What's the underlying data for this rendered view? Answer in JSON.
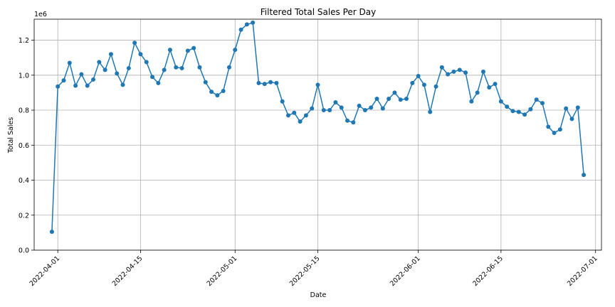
{
  "chart_data": {
    "type": "line",
    "title": "Filtered Total Sales Per Day",
    "xlabel": "Date",
    "ylabel": "Total Sales",
    "y_offset_label": "1e6",
    "start_date": "2022-03-31",
    "xlim": [
      "2022-03-28",
      "2022-07-02"
    ],
    "ylim": [
      0,
      1.32
    ],
    "x_ticks": [
      "2022-04-01",
      "2022-04-15",
      "2022-05-01",
      "2022-05-15",
      "2022-06-01",
      "2022-06-15",
      "2022-07-01"
    ],
    "y_ticks": [
      0.0,
      0.2,
      0.4,
      0.6,
      0.8,
      1.0,
      1.2
    ],
    "y_tick_labels": [
      "0.0",
      "0.2",
      "0.4",
      "0.6",
      "0.8",
      "1.0",
      "1.2"
    ],
    "grid": true,
    "marker": "circle",
    "color": "#1f77b4",
    "series": [
      {
        "values": [
          0.105,
          0.935,
          0.97,
          1.07,
          0.94,
          1.005,
          0.94,
          0.975,
          1.075,
          1.03,
          1.12,
          1.01,
          0.945,
          1.04,
          1.185,
          1.12,
          1.075,
          0.99,
          0.955,
          1.03,
          1.145,
          1.045,
          1.04,
          1.14,
          1.155,
          1.045,
          0.96,
          0.905,
          0.885,
          0.91,
          1.045,
          1.145,
          1.26,
          1.29,
          1.3,
          0.955,
          0.95,
          0.96,
          0.955,
          0.85,
          0.77,
          0.785,
          0.735,
          0.77,
          0.81,
          0.945,
          0.8,
          0.8,
          0.845,
          0.815,
          0.74,
          0.73,
          0.825,
          0.8,
          0.815,
          0.865,
          0.81,
          0.865,
          0.9,
          0.86,
          0.865,
          0.955,
          0.995,
          0.945,
          0.79,
          0.935,
          1.045,
          1.005,
          1.02,
          1.03,
          1.015,
          0.85,
          0.9,
          1.02,
          0.93,
          0.95,
          0.85,
          0.82,
          0.795,
          0.79,
          0.775,
          0.805,
          0.86,
          0.84,
          0.705,
          0.67,
          0.69,
          0.81,
          0.75,
          0.815,
          0.43
        ]
      }
    ]
  }
}
